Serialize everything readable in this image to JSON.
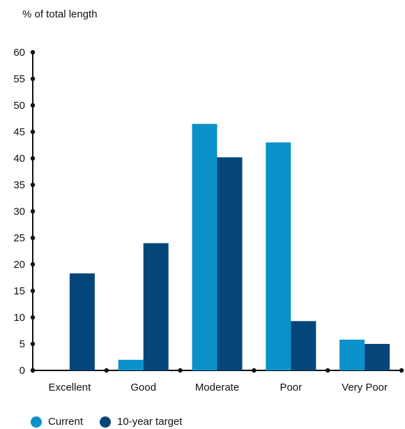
{
  "chart_data": {
    "type": "bar",
    "ylabel": "% of total length",
    "categories": [
      "Excellent",
      "Good",
      "Moderate",
      "Poor",
      "Very Poor"
    ],
    "series": [
      {
        "name": "Current",
        "values": [
          0,
          2,
          46.5,
          43,
          5.8
        ],
        "color": "#0b91c9"
      },
      {
        "name": "10-year target",
        "values": [
          18.3,
          24,
          40.2,
          9.3,
          5
        ],
        "color": "#05467a"
      }
    ],
    "ylim": [
      0,
      60
    ],
    "yticks": [
      "0",
      "5",
      "10",
      "15",
      "20",
      "25",
      "30",
      "35",
      "40",
      "45",
      "50",
      "55",
      "60"
    ],
    "legend_position": "bottom-left",
    "grid": false
  }
}
